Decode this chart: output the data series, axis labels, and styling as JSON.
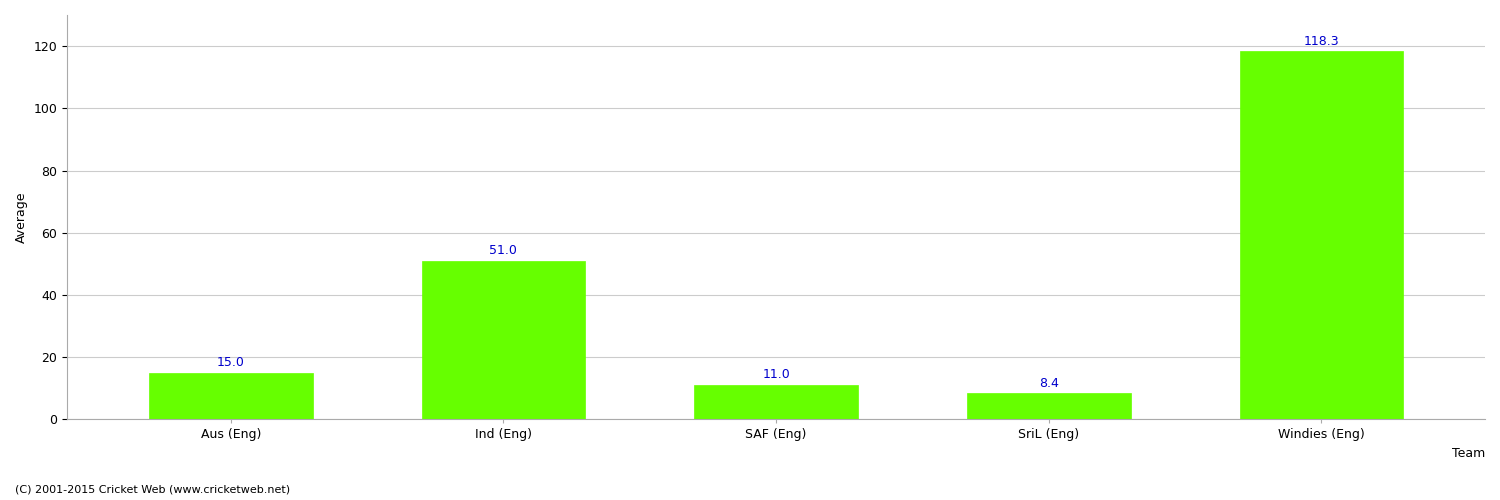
{
  "categories": [
    "Aus (Eng)",
    "Ind (Eng)",
    "SAF (Eng)",
    "SriL (Eng)",
    "Windies (Eng)"
  ],
  "values": [
    15.0,
    51.0,
    11.0,
    8.4,
    118.3
  ],
  "bar_color": "#66ff00",
  "bar_edge_color": "#66ff00",
  "label_color": "#0000cc",
  "ylabel": "Average",
  "xlabel": "Team",
  "ylim": [
    0,
    130
  ],
  "yticks": [
    0,
    20,
    40,
    60,
    80,
    100,
    120
  ],
  "label_fontsize": 9,
  "axis_label_fontsize": 9,
  "tick_fontsize": 9,
  "footer_text": "(C) 2001-2015 Cricket Web (www.cricketweb.net)",
  "footer_fontsize": 8,
  "background_color": "#ffffff",
  "grid_color": "#cccccc",
  "bar_width": 0.6,
  "figure_width": 15.0,
  "figure_height": 5.0,
  "dpi": 100
}
